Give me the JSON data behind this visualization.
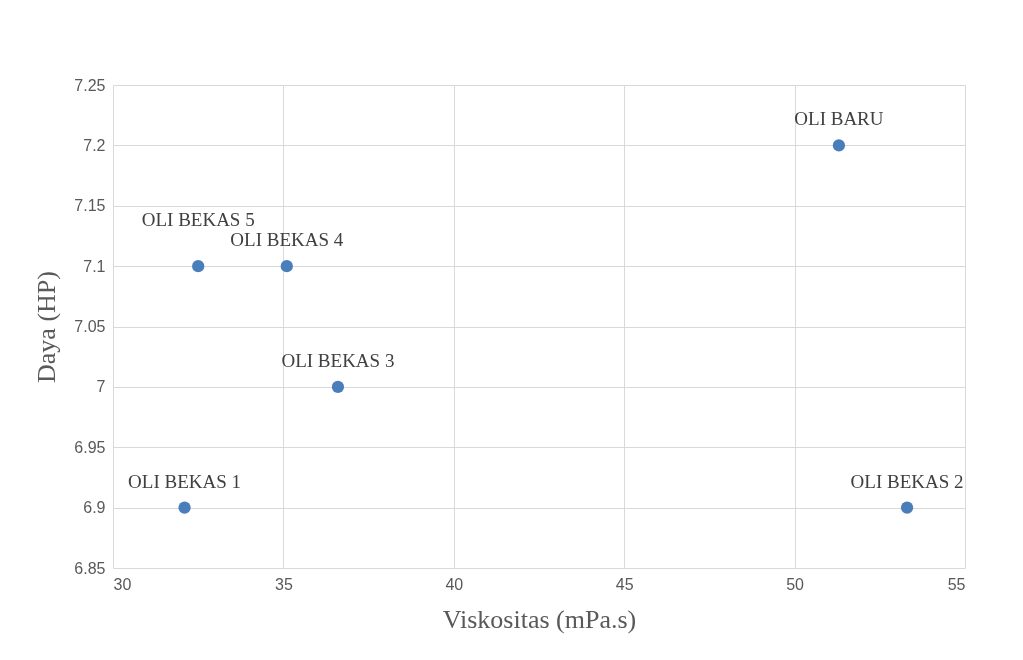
{
  "chart_data": {
    "type": "scatter",
    "xlabel": "Viskositas (mPa.s)",
    "ylabel": "Daya (HP)",
    "x": [
      51.3,
      32.5,
      35.1,
      36.6,
      32.1,
      53.3
    ],
    "series": [
      {
        "color": "#4a7ebb",
        "values": [
          7.2,
          7.1,
          7.1,
          7.0,
          6.9,
          6.9
        ]
      }
    ],
    "xlim": [
      30,
      55
    ],
    "xticks": [
      30,
      35,
      40,
      45,
      50,
      55
    ],
    "ylim": [
      6.85,
      7.25
    ],
    "yticks": [
      6.85,
      6.9,
      6.95,
      7,
      7.05,
      7.1,
      7.15,
      7.2,
      7.25
    ],
    "grid": true,
    "marker": "circle",
    "annotations": [
      {
        "text": "OLI BARU",
        "x": 51.3,
        "y": 7.2
      },
      {
        "text": "OLI BEKAS 5",
        "x": 32.5,
        "y": 7.1
      },
      {
        "text": "OLI BEKAS 4",
        "x": 35.1,
        "y": 7.1
      },
      {
        "text": "OLI BEKAS 3",
        "x": 36.6,
        "y": 7.0
      },
      {
        "text": "OLI BEKAS 1",
        "x": 32.1,
        "y": 6.9
      },
      {
        "text": "OLI BEKAS 2",
        "x": 53.3,
        "y": 6.9
      }
    ]
  }
}
